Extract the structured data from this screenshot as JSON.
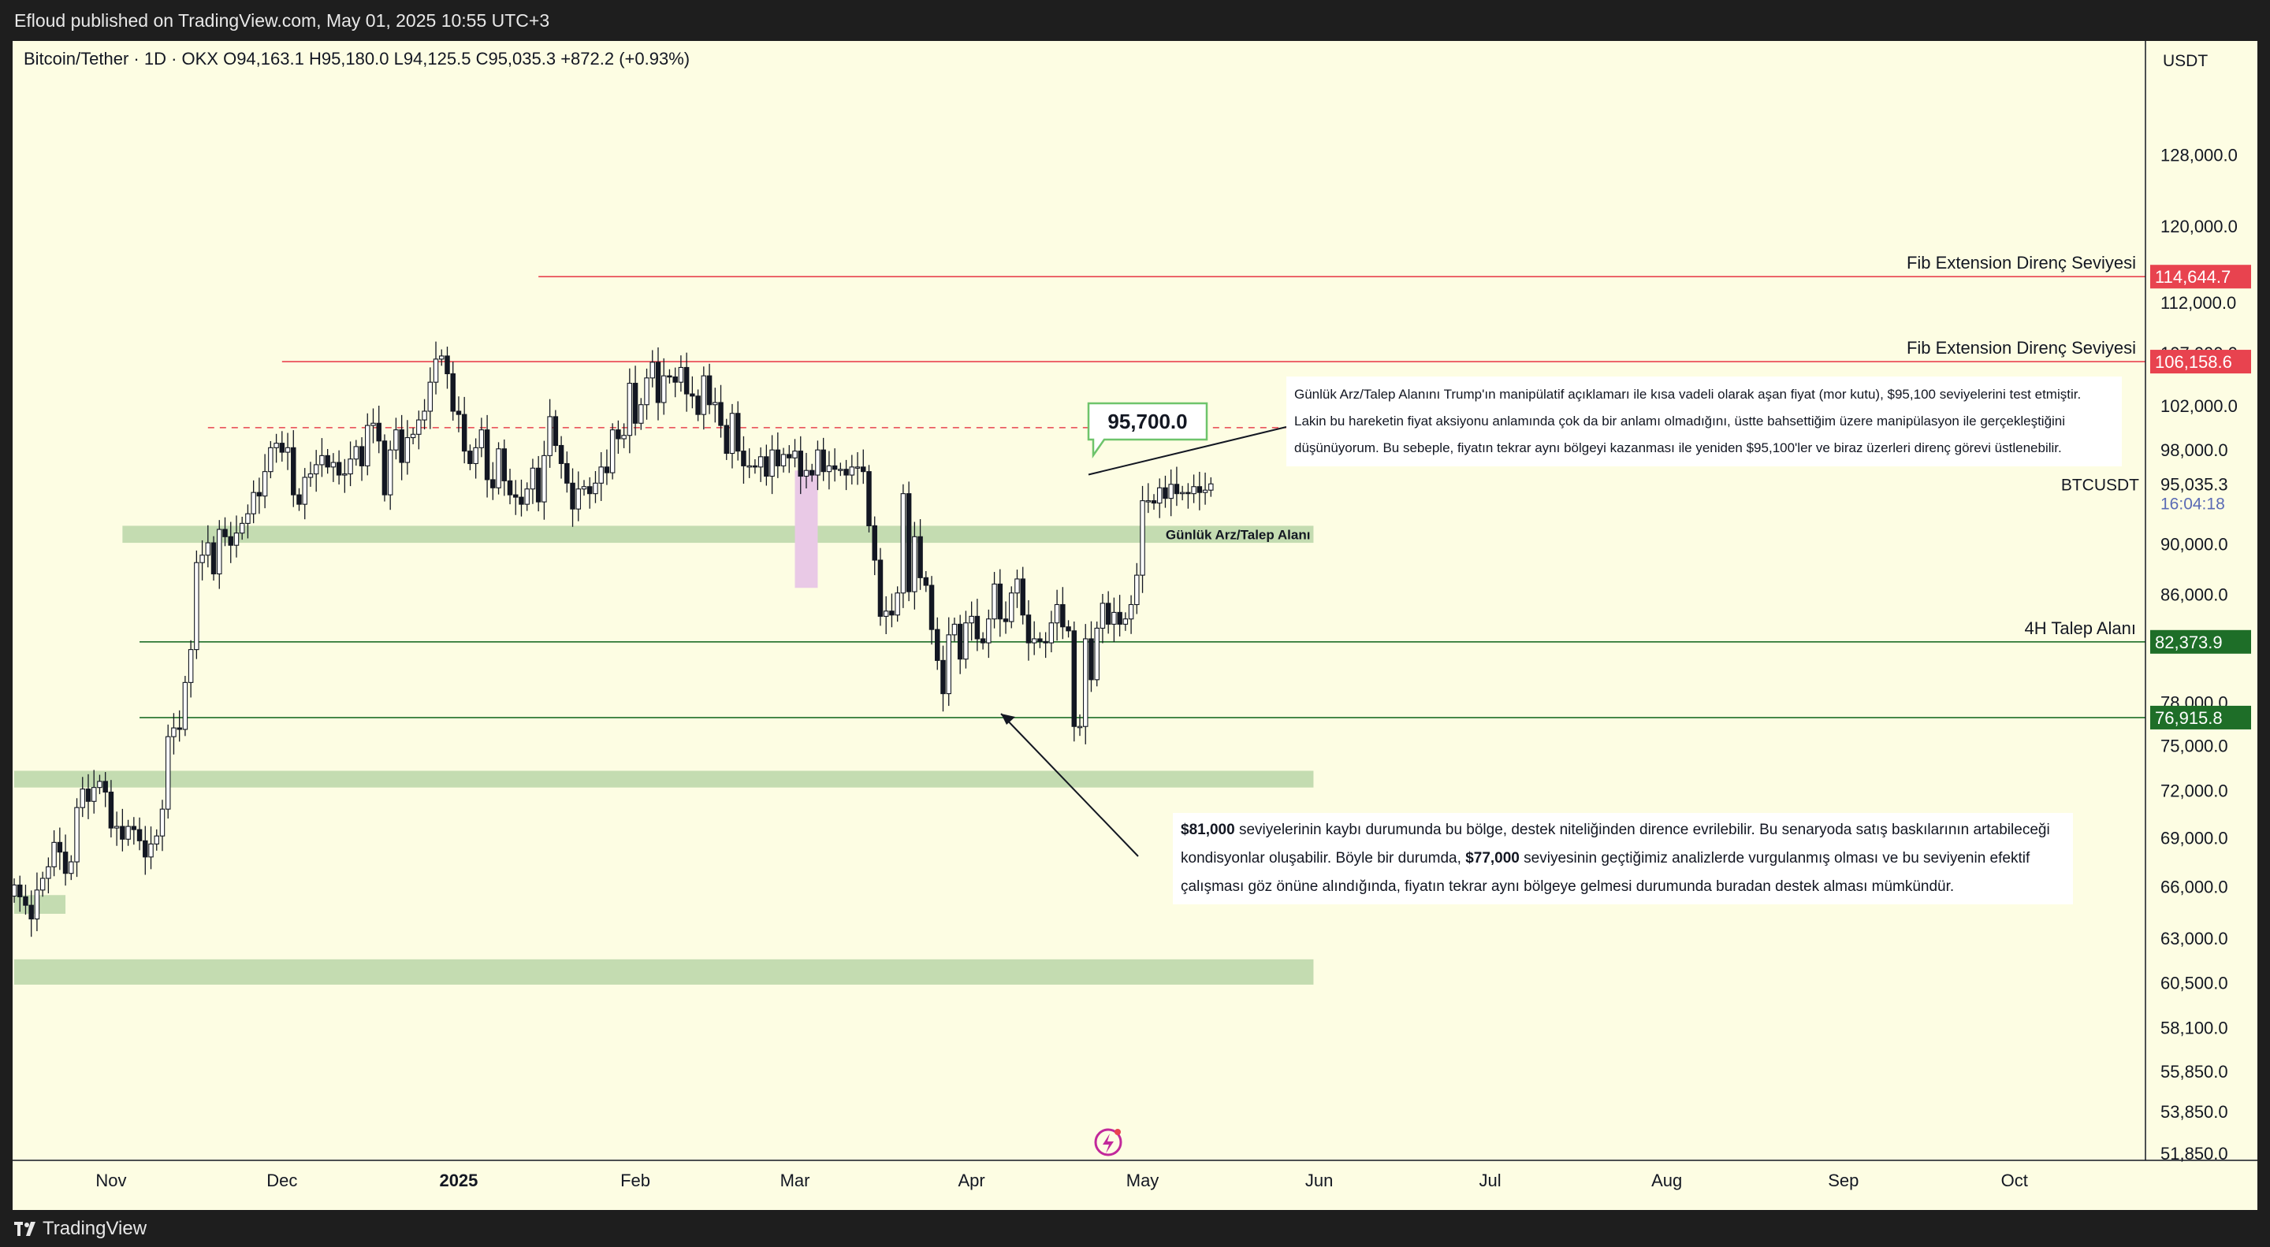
{
  "header": {
    "published": "Efloud published on TradingView.com, May 01, 2025 10:55 UTC+3"
  },
  "symbol": {
    "legend": "Bitcoin/Tether · 1D · OKX   O94,163.1   H95,180.0   L94,125.5   C95,035.3   +872.2 (+0.93%)"
  },
  "chart_data": {
    "type": "candlestick",
    "title": "Bitcoin/Tether · 1D · OKX",
    "currency": "USDT",
    "y_scale": "log",
    "ylim": [
      51850,
      135000
    ],
    "x_start": "2024-10-15",
    "x_ticks": [
      "Nov",
      "Dec",
      "2025",
      "Feb",
      "Mar",
      "Apr",
      "May",
      "Jun",
      "Jul",
      "Aug",
      "Sep",
      "Oct"
    ],
    "y_ticks": [
      "128,000.0",
      "120,000.0",
      "112,000.0",
      "107,000.0",
      "102,000.0",
      "98,000.0",
      "90,000.0",
      "86,000.0",
      "78,000.0",
      "75,000.0",
      "72,000.0",
      "69,000.0",
      "66,000.0",
      "63,000.0",
      "60,500.0",
      "58,100.0",
      "55,850.0",
      "53,850.0",
      "51,850.0"
    ],
    "close": [
      66100,
      65400,
      64900,
      64100,
      65800,
      66500,
      67200,
      68700,
      68100,
      66800,
      67500,
      70900,
      72100,
      71300,
      72200,
      72600,
      71900,
      69600,
      69700,
      68900,
      69700,
      69500,
      68800,
      67800,
      68600,
      69100,
      70800,
      75600,
      76200,
      76100,
      79400,
      81800,
      88500,
      89100,
      90100,
      87600,
      91200,
      90600,
      89900,
      90900,
      91700,
      92500,
      94300,
      94000,
      96100,
      98200,
      98600,
      97800,
      98200,
      94100,
      93300,
      95600,
      95900,
      96700,
      97500,
      96500,
      96900,
      95800,
      95900,
      97200,
      98300,
      96600,
      100200,
      100400,
      98800,
      94100,
      98000,
      99800,
      96900,
      99100,
      99400,
      100700,
      101500,
      104200,
      106400,
      106700,
      105000,
      101500,
      101200,
      97900,
      96800,
      98200,
      99800,
      95400,
      94700,
      98100,
      95300,
      94100,
      93900,
      93300,
      94600,
      96400,
      93500,
      97500,
      101000,
      98400,
      96800,
      95100,
      92900,
      94600,
      94800,
      94200,
      95100,
      96500,
      96000,
      99800,
      99000,
      99300,
      104100,
      100400,
      102100,
      104600,
      106100,
      102300,
      104800,
      104700,
      104200,
      105600,
      103100,
      102900,
      101200,
      104800,
      102100,
      102300,
      100200,
      97700,
      101300,
      97900,
      96600,
      96600,
      96500,
      97400,
      95700,
      98000,
      96600,
      97600,
      97300,
      97900,
      95700,
      96200,
      95800,
      98000,
      96100,
      96600,
      96300,
      96300,
      95800,
      96500,
      96500,
      96100,
      91500,
      88700,
      84300,
      84700,
      84400,
      86100,
      94200,
      86200,
      90600,
      87300,
      86700,
      83300,
      81000,
      78600,
      82900,
      83700,
      81100,
      83800,
      84300,
      82600,
      82300,
      84100,
      86800,
      84100,
      83900,
      86100,
      87200,
      84400,
      82300,
      82600,
      82400,
      82300,
      83800,
      85200,
      83500,
      83200,
      76300,
      76300,
      82600,
      79600,
      83400,
      85300,
      83700,
      84600,
      83700,
      84100,
      85200,
      87500,
      93600,
      93600,
      93400,
      94700,
      93800,
      95000,
      94200,
      94300,
      94200,
      94800,
      94300,
      94500,
      95035
    ],
    "series": [
      {
        "name": "BTCUSDT",
        "last": "95,035.3",
        "countdown": "16:04:18"
      }
    ],
    "levels": [
      {
        "price": 114644.7,
        "label": "Fib Extension Direnç Seviyesi",
        "tag": "114,644.7",
        "color": "#e8434f",
        "start": "2025-01-15"
      },
      {
        "price": 106158.6,
        "label": "Fib Extension Direnç Seviyesi",
        "tag": "106,158.6",
        "color": "#e8434f",
        "start": "2024-12-01"
      },
      {
        "price": 100000,
        "label": "",
        "tag": "",
        "color": "#e8434f",
        "dashed": true,
        "start": "2024-11-18",
        "end": "2025-05-30"
      },
      {
        "price": 82373.9,
        "label": "4H Talep Alanı",
        "tag": "82,373.9",
        "color": "#1e6e28",
        "start": "2024-11-06"
      },
      {
        "price": 76915.8,
        "label": "",
        "tag": "76,915.8",
        "color": "#1e6e28",
        "start": "2024-11-06"
      }
    ],
    "zones": [
      {
        "top": 91500,
        "bottom": 90100,
        "label": "Günlük Arz/Talep Alanı",
        "start": "2024-11-03",
        "end": "2025-05-31"
      },
      {
        "top": 73300,
        "bottom": 72200,
        "label": "",
        "start": "2024-10-15",
        "end": "2025-05-31"
      },
      {
        "top": 65500,
        "bottom": 64400,
        "label": "",
        "start": "2024-10-15",
        "end": "2024-10-24"
      },
      {
        "top": 61800,
        "bottom": 60400,
        "label": "",
        "start": "2024-10-15",
        "end": "2025-05-31"
      }
    ],
    "highlight": {
      "start": "2025-03-01",
      "end": "2025-03-05",
      "top": 96200,
      "bottom": 86500,
      "color": "#e9c9e6"
    },
    "callout": {
      "label": "95,700.0",
      "price": 95700
    }
  },
  "notes": {
    "top": "Günlük Arz/Talep Alanını Trump'ın manipülatif açıklamarı ile kısa vadeli olarak aşan fiyat (mor kutu), $95,100 seviyelerini test etmiştir. Lakin bu hareketin fiyat aksiyonu anlamında çok da bir anlamı olmadığını, üstte bahsettiğim üzere manipülasyon ile gerçekleştiğini düşünüyorum. Bu sebeple, fiyatın tekrar aynı bölgeyi kazanması ile yeniden $95,100'ler ve biraz üzerleri direnç görevi üstlenebilir.",
    "bottom_bold1": "$81,000",
    "bottom_part1": " seviyelerinin kaybı durumunda bu bölge, destek niteliğinden dirence evrilebilir. Bu senaryoda satış baskılarının artabileceği kondisyonlar oluşabilir. Böyle bir durumda, ",
    "bottom_bold2": "$77,000",
    "bottom_part2": " seviyesinin geçtiğimiz analizlerde vurgulanmış olması ve bu seviyenin efektif çalışması göz önüne alındığında, fiyatın tekrar aynı bölgeye gelmesi durumunda buradan destek alması mümkündür."
  },
  "footer": {
    "brand": "TradingView"
  },
  "colors": {
    "background": "#fdfde3",
    "candle": "#131722",
    "resistance": "#e8434f",
    "support": "#1e6e28",
    "zone": "#c4dcb1",
    "callout": "#6ec46b"
  }
}
